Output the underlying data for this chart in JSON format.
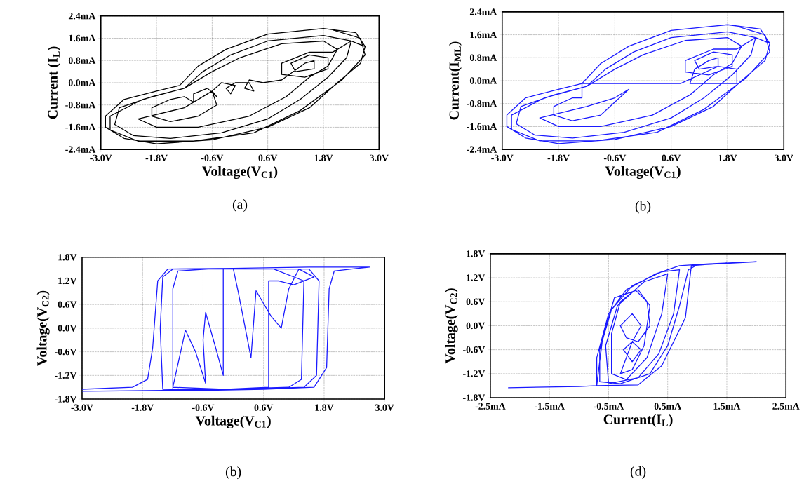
{
  "chart_data": [
    {
      "type": "line",
      "xlabel": "Voltage(V$_{C1}$)",
      "ylabel": "Current (I$_{L}$)",
      "annotations": [
        "(a)"
      ],
      "grid": true,
      "xlim": [
        -3.0,
        3.0
      ],
      "ylim": [
        -2.4,
        2.4
      ],
      "xticks": [
        {
          "value": -3.0,
          "label": "-3.0V"
        },
        {
          "value": -1.8,
          "label": "-1.8V"
        },
        {
          "value": -0.6,
          "label": "-0.6V"
        },
        {
          "value": 0.6,
          "label": "0.6V"
        },
        {
          "value": 1.8,
          "label": "1.8V"
        },
        {
          "value": 3.0,
          "label": "3.0V"
        }
      ],
      "yticks": [
        {
          "value": -2.4,
          "label": "-2.4mA"
        },
        {
          "value": -1.6,
          "label": "-1.6mA"
        },
        {
          "value": -0.8,
          "label": "-0.8mA"
        },
        {
          "value": 0.0,
          "label": "0.0mA"
        },
        {
          "value": 0.8,
          "label": "0.8mA"
        },
        {
          "value": 1.6,
          "label": "1.6mA"
        },
        {
          "value": 2.4,
          "label": "2.4mA"
        }
      ],
      "series": [
        {
          "color": "#000000",
          "x": [
            2.7,
            2.5,
            1.8,
            0.6,
            -0.3,
            -0.9,
            -1.3,
            -1.8,
            -2.5,
            -2.9,
            -2.9,
            -2.5,
            -1.8,
            -0.6,
            0.6,
            1.5,
            2.1,
            2.6,
            2.7,
            2.4,
            1.8,
            0.6,
            -0.2,
            -0.8,
            -1.2,
            -1.9,
            -2.6,
            -2.7,
            -2.3,
            -1.5,
            -0.4,
            0.6,
            1.3,
            1.9,
            2.3,
            2.4,
            2.0,
            1.5,
            0.9,
            0.9,
            1.4,
            1.9,
            1.9,
            1.5,
            1.1,
            1.2,
            1.6,
            1.6,
            1.4,
            0.9,
            0.5,
            0.2,
            0.1,
            0.3,
            0.2,
            -0.1,
            -0.3,
            -0.2,
            -0.1,
            -0.4,
            -0.6,
            -0.5,
            -0.7,
            -1.0,
            -1.0,
            -1.2,
            -1.5,
            -1.9,
            -1.9,
            -1.5,
            -0.9,
            -0.5,
            -0.6,
            -1.2,
            -2.2,
            -1.8,
            -0.9,
            0.2,
            1.0,
            1.5,
            1.9,
            2.1,
            1.8,
            0.9,
            0.0,
            -0.6,
            -1.2,
            -2.1,
            -2.8,
            -2.8,
            -2.2,
            -1.0,
            0.3,
            1.3,
            2.2,
            2.7,
            2.6,
            2.0
          ],
          "values": [
            1.3,
            1.8,
            1.95,
            1.75,
            1.2,
            0.6,
            -0.1,
            -0.3,
            -0.6,
            -1.2,
            -1.6,
            -2.0,
            -2.2,
            -2.05,
            -1.6,
            -0.9,
            0.0,
            0.7,
            1.3,
            1.5,
            1.7,
            1.5,
            1.0,
            0.4,
            -0.2,
            -0.5,
            -0.9,
            -1.5,
            -1.9,
            -2.0,
            -1.8,
            -1.3,
            -0.6,
            0.2,
            0.9,
            1.5,
            1.1,
            1.1,
            0.7,
            0.3,
            0.2,
            0.5,
            0.9,
            1.0,
            0.7,
            0.4,
            0.5,
            0.8,
            0.7,
            0.1,
            0.0,
            0.1,
            -0.2,
            -0.3,
            0.0,
            0.0,
            -0.2,
            -0.4,
            -0.1,
            0.0,
            -0.3,
            -0.5,
            -0.2,
            -0.4,
            -0.7,
            -0.5,
            -0.6,
            -0.9,
            -1.2,
            -1.4,
            -1.2,
            -0.8,
            -0.3,
            -0.9,
            -1.3,
            -1.6,
            -1.6,
            -1.2,
            -0.5,
            0.2,
            0.6,
            1.2,
            1.5,
            1.4,
            0.9,
            0.4,
            -0.2,
            -0.6,
            -1.2,
            -1.7,
            -2.1,
            -2.1,
            -1.8,
            -1.0,
            0.1,
            1.0,
            1.6,
            1.9
          ]
        }
      ]
    },
    {
      "type": "line",
      "xlabel": "Voltage(V$_{C1}$)",
      "ylabel": "Current(I$_{ML}$)",
      "annotations": [
        "(b)"
      ],
      "grid": true,
      "xlim": [
        -3.0,
        3.0
      ],
      "ylim": [
        -2.4,
        2.4
      ],
      "xticks": [
        {
          "value": -3.0,
          "label": "-3.0V"
        },
        {
          "value": -1.8,
          "label": "-1.8V"
        },
        {
          "value": -0.6,
          "label": "-0.6V"
        },
        {
          "value": 0.6,
          "label": "0.6V"
        },
        {
          "value": 1.8,
          "label": "1.8V"
        },
        {
          "value": 3.0,
          "label": "3.0V"
        }
      ],
      "yticks": [
        {
          "value": -2.4,
          "label": "-2.4mA"
        },
        {
          "value": -1.6,
          "label": "-1.6mA"
        },
        {
          "value": -0.8,
          "label": "-0.8mA"
        },
        {
          "value": 0.0,
          "label": "0.0mA"
        },
        {
          "value": 0.8,
          "label": "0.8mA"
        },
        {
          "value": 1.6,
          "label": "1.6mA"
        },
        {
          "value": 2.4,
          "label": "2.4mA"
        }
      ],
      "series": [
        {
          "color": "#1a1aff",
          "x": [
            2.7,
            2.5,
            1.8,
            0.6,
            -0.3,
            -0.9,
            -1.3,
            -1.8,
            -2.5,
            -2.9,
            -2.9,
            -2.5,
            -1.8,
            -0.6,
            0.6,
            1.5,
            2.1,
            2.6,
            2.7,
            2.4,
            1.8,
            0.6,
            -0.2,
            -0.8,
            -1.2,
            -1.9,
            -2.6,
            -2.7,
            -2.3,
            -1.5,
            -0.4,
            0.6,
            1.3,
            1.9,
            2.3,
            2.4,
            2.0,
            1.5,
            0.9,
            0.9,
            1.4,
            1.9,
            1.9,
            1.5,
            1.1,
            1.2,
            1.6,
            1.6,
            1.4,
            1.1,
            1.0,
            2.0,
            2.0,
            1.6,
            0.8,
            -1.3,
            -1.3,
            -1.5,
            -1.9,
            -1.9,
            -1.5,
            -0.9,
            -0.3,
            -0.6,
            -1.2,
            -2.2,
            -1.8,
            -0.9,
            0.2,
            1.0,
            1.5,
            1.9,
            2.1,
            1.8,
            0.9,
            0.0,
            -0.6,
            -1.2,
            -2.1,
            -2.8,
            -2.8,
            -2.2,
            -1.0,
            0.3,
            1.3,
            2.2,
            2.7,
            2.6,
            2.0
          ],
          "values": [
            1.3,
            1.8,
            1.95,
            1.75,
            1.2,
            0.6,
            -0.1,
            -0.3,
            -0.6,
            -1.2,
            -1.6,
            -2.0,
            -2.2,
            -2.05,
            -1.6,
            -0.9,
            0.0,
            0.7,
            1.3,
            1.5,
            1.7,
            1.5,
            1.0,
            0.4,
            -0.2,
            -0.5,
            -0.9,
            -1.5,
            -1.9,
            -2.0,
            -1.8,
            -1.3,
            -0.6,
            0.2,
            0.9,
            1.5,
            1.1,
            1.1,
            0.7,
            0.3,
            0.2,
            0.5,
            0.9,
            1.0,
            0.7,
            0.4,
            0.5,
            0.8,
            0.7,
            0.4,
            -0.1,
            -0.1,
            0.4,
            0.5,
            -0.1,
            -0.1,
            -0.6,
            -0.6,
            -0.9,
            -1.2,
            -1.4,
            -1.2,
            -0.3,
            -0.6,
            -0.9,
            -1.3,
            -1.6,
            -1.6,
            -1.2,
            -0.5,
            0.2,
            0.6,
            1.2,
            1.5,
            1.4,
            0.9,
            0.4,
            -0.2,
            -0.6,
            -1.2,
            -1.7,
            -2.1,
            -2.1,
            -1.8,
            -1.0,
            0.1,
            1.0,
            1.6,
            1.9
          ]
        }
      ]
    },
    {
      "type": "line",
      "xlabel": "Voltage(V$_{C1}$)",
      "ylabel": "Voltage(V$_{C2}$)",
      "annotations": [
        "(b)"
      ],
      "grid": true,
      "xlim": [
        -3.0,
        3.0
      ],
      "ylim": [
        -1.8,
        1.8
      ],
      "xticks": [
        {
          "value": -3.0,
          "label": "-3.0V"
        },
        {
          "value": -1.8,
          "label": "-1.8V"
        },
        {
          "value": -0.6,
          "label": "-0.6V"
        },
        {
          "value": 0.6,
          "label": "0.6V"
        },
        {
          "value": 1.8,
          "label": "1.8V"
        },
        {
          "value": 3.0,
          "label": "3.0V"
        }
      ],
      "yticks": [
        {
          "value": -1.8,
          "label": "-1.8V"
        },
        {
          "value": -1.2,
          "label": "-1.2V"
        },
        {
          "value": -0.6,
          "label": "-0.6V"
        },
        {
          "value": 0.0,
          "label": "0.0V"
        },
        {
          "value": 0.6,
          "label": "0.6V"
        },
        {
          "value": 1.2,
          "label": "1.2V"
        },
        {
          "value": 1.8,
          "label": "1.8V"
        }
      ],
      "series": [
        {
          "color": "#1a1aff",
          "x": [
            -3.0,
            -2.0,
            -1.7,
            -1.6,
            -1.5,
            -1.3,
            0.0,
            1.5,
            2.7,
            2.0,
            1.9,
            1.85,
            1.6,
            0.6,
            -0.5,
            -1.4,
            -1.45,
            -1.4,
            -1.2,
            0.0,
            1.5,
            1.7,
            1.65,
            1.4,
            0.2,
            -1.2,
            -1.2,
            -1.1,
            -0.5,
            0.8,
            1.4,
            1.35,
            1.1,
            -0.2,
            -1.2,
            -0.95,
            -0.75,
            -0.55,
            -0.6,
            -0.55,
            -0.35,
            -0.2,
            -0.2,
            0.0,
            0.1,
            0.35,
            0.45,
            0.75,
            0.95,
            1.1,
            1.3,
            1.6,
            1.2,
            0.9,
            0.7,
            0.7,
            -0.5,
            -3.0
          ],
          "values": [
            -1.55,
            -1.5,
            -1.3,
            -0.5,
            1.2,
            1.5,
            1.52,
            1.55,
            1.55,
            1.45,
            1.0,
            -1.0,
            -1.5,
            -1.55,
            -1.58,
            -1.55,
            0.0,
            1.3,
            1.5,
            1.5,
            1.5,
            1.2,
            -1.2,
            -1.5,
            -1.55,
            -1.55,
            1.0,
            1.45,
            1.5,
            1.5,
            1.2,
            -1.3,
            -1.5,
            -1.55,
            -1.5,
            -0.05,
            -0.6,
            -1.4,
            -0.3,
            0.4,
            -0.5,
            -1.2,
            1.5,
            1.5,
            0.9,
            -0.75,
            0.95,
            0.3,
            0.0,
            1.0,
            1.5,
            1.3,
            1.1,
            1.2,
            1.2,
            -1.5,
            -1.57,
            -1.6
          ]
        }
      ]
    },
    {
      "type": "line",
      "xlabel": "Current(I$_{L}$)",
      "ylabel": "Voltage(V$_{C2}$)",
      "annotations": [
        "(d)"
      ],
      "grid": true,
      "xlim": [
        -2.5,
        2.5
      ],
      "ylim": [
        -1.8,
        1.8
      ],
      "xticks": [
        {
          "value": -2.5,
          "label": "-2.5mA"
        },
        {
          "value": -1.5,
          "label": "-1.5mA"
        },
        {
          "value": -0.5,
          "label": "-0.5mA"
        },
        {
          "value": 0.5,
          "label": "0.5mA"
        },
        {
          "value": 1.5,
          "label": "1.5mA"
        },
        {
          "value": 2.5,
          "label": "2.5mA"
        }
      ],
      "yticks": [
        {
          "value": -1.8,
          "label": "-1.8V"
        },
        {
          "value": -1.2,
          "label": "-1.2V"
        },
        {
          "value": -0.6,
          "label": "-0.6V"
        },
        {
          "value": 0.0,
          "label": "0.0V"
        },
        {
          "value": 0.6,
          "label": "0.6V"
        },
        {
          "value": 1.2,
          "label": "1.2V"
        },
        {
          "value": 1.8,
          "label": "1.8V"
        }
      ],
      "series": [
        {
          "color": "#1a1aff",
          "x": [
            -2.2,
            -1.0,
            -0.7,
            -0.7,
            -0.5,
            -0.2,
            0.3,
            0.7,
            1.2,
            2.0,
            1.0,
            0.85,
            0.7,
            0.5,
            0.2,
            -0.3,
            -0.65,
            -0.65,
            -0.45,
            -0.1,
            0.4,
            0.7,
            0.6,
            0.35,
            0.0,
            -0.5,
            -0.55,
            -0.35,
            0.1,
            0.5,
            0.4,
            0.15,
            -0.2,
            -0.45,
            -0.45,
            -0.3,
            -0.05,
            0.15,
            0.2,
            0.0,
            -0.2,
            -0.3,
            -0.1,
            0.05,
            -0.1,
            -0.25,
            -0.1,
            0.05,
            -0.1,
            -0.3,
            -0.1,
            0.1,
            0.2,
            0.0,
            -0.4,
            -0.6,
            -0.7,
            0.0,
            0.4,
            0.8,
            0.9,
            1.5
          ],
          "values": [
            -1.55,
            -1.52,
            -1.5,
            -0.8,
            0.3,
            0.9,
            1.3,
            1.5,
            1.55,
            1.6,
            1.52,
            1.4,
            0.5,
            -0.5,
            -1.2,
            -1.45,
            -1.4,
            -0.6,
            0.4,
            1.0,
            1.35,
            1.4,
            0.3,
            -0.7,
            -1.3,
            -1.45,
            -0.5,
            0.5,
            1.1,
            1.3,
            0.3,
            -0.8,
            -1.35,
            -1.2,
            -0.2,
            0.6,
            0.9,
            0.6,
            0.0,
            -0.4,
            -0.3,
            0.0,
            0.3,
            0.0,
            -0.4,
            -0.6,
            -0.9,
            -0.6,
            -0.4,
            -1.2,
            -1.1,
            -0.5,
            0.5,
            0.9,
            0.7,
            -0.3,
            -1.5,
            -1.48,
            -1.0,
            0.2,
            1.5,
            1.57
          ]
        }
      ]
    }
  ]
}
